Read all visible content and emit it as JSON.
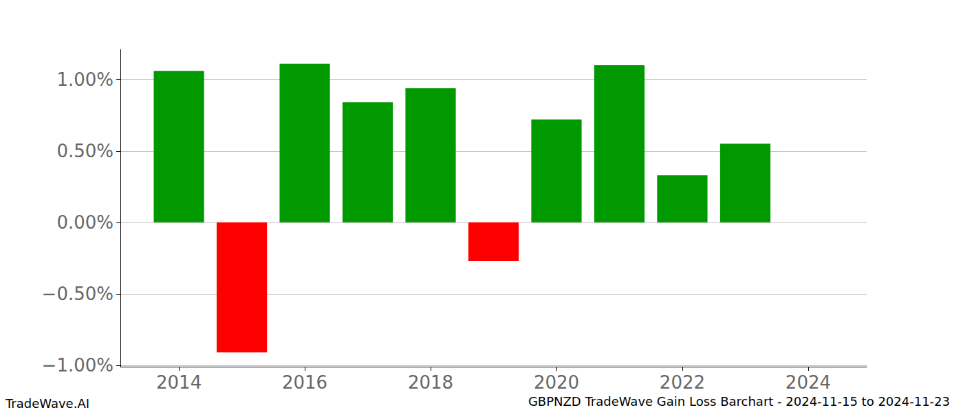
{
  "chart_data": {
    "type": "bar",
    "title": "GBPNZD TradeWave Gain Loss Barchart - 2024-11-15 to 2024-11-23",
    "annotations": [
      "TradeWave.AI"
    ],
    "x": [
      2014,
      2015,
      2016,
      2017,
      2018,
      2019,
      2020,
      2021,
      2022,
      2023
    ],
    "values": [
      1.06,
      -0.91,
      1.11,
      0.84,
      0.94,
      -0.27,
      0.72,
      1.1,
      0.33,
      0.55
    ],
    "colors": [
      "#009900",
      "#ff0000",
      "#009900",
      "#009900",
      "#009900",
      "#ff0000",
      "#009900",
      "#009900",
      "#009900",
      "#009900"
    ],
    "xlim": [
      2013.07,
      2024.93
    ],
    "xticks": [
      2014,
      2016,
      2018,
      2020,
      2022,
      2024
    ],
    "ylim": [
      -1.01,
      1.21
    ],
    "yticks": [
      {
        "value": -1,
        "label": "−1.00%"
      },
      {
        "value": -0.5,
        "label": "−0.50%"
      },
      {
        "value": 0,
        "label": "0.00%"
      },
      {
        "value": 0.5,
        "label": "0.50%"
      },
      {
        "value": 1,
        "label": "1.00%"
      }
    ],
    "grid": true
  }
}
